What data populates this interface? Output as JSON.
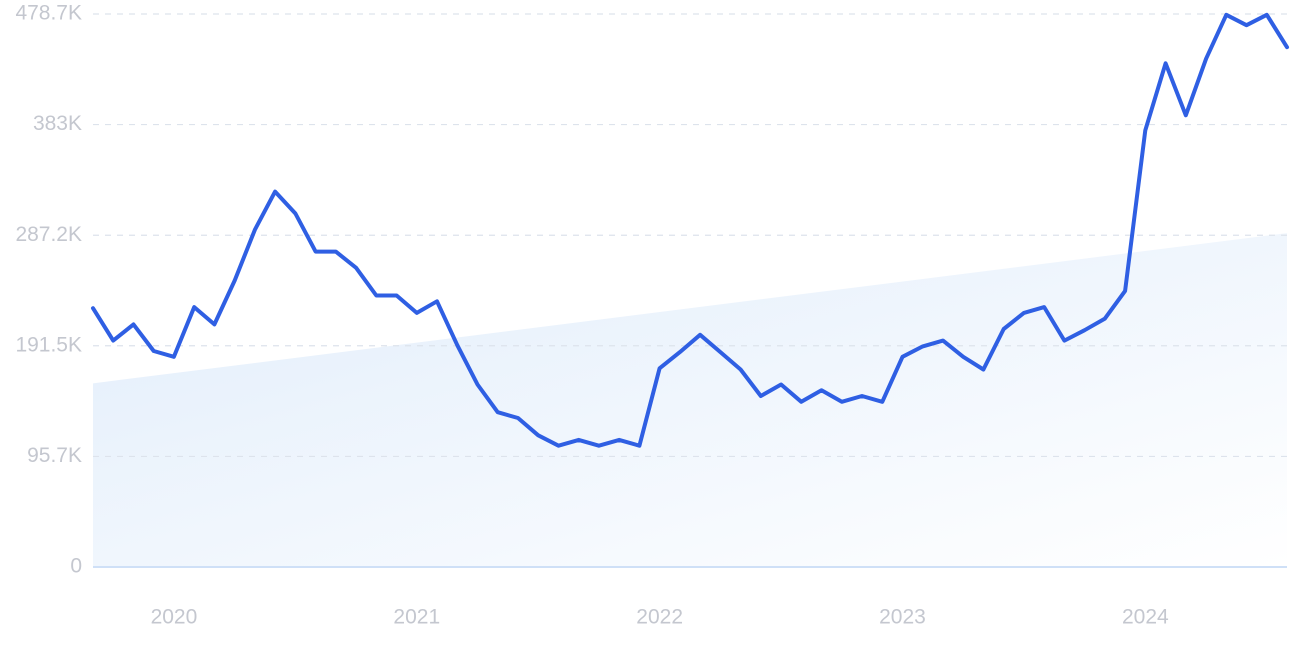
{
  "chart_data": {
    "type": "line",
    "categories": [
      null,
      null,
      null,
      null,
      "2020",
      null,
      null,
      null,
      null,
      null,
      null,
      null,
      null,
      null,
      null,
      null,
      "2021",
      null,
      null,
      null,
      null,
      null,
      null,
      null,
      null,
      null,
      null,
      null,
      "2022",
      null,
      null,
      null,
      null,
      null,
      null,
      null,
      null,
      null,
      null,
      null,
      "2023",
      null,
      null,
      null,
      null,
      null,
      null,
      null,
      null,
      null,
      null,
      null,
      "2024",
      null,
      null,
      null,
      null,
      null,
      null,
      null
    ],
    "values": [
      224000,
      196000,
      210000,
      187000,
      182000,
      225000,
      210000,
      248000,
      292000,
      325000,
      306000,
      273000,
      273000,
      259000,
      235000,
      235000,
      220000,
      230000,
      192000,
      158000,
      134000,
      129000,
      114000,
      105000,
      110000,
      105000,
      110000,
      105000,
      172000,
      186000,
      201000,
      186000,
      171000,
      148000,
      158000,
      143000,
      153000,
      143000,
      148000,
      143000,
      182000,
      191000,
      196000,
      182000,
      171000,
      206000,
      220000,
      225000,
      196000,
      205000,
      215000,
      239000,
      378000,
      436000,
      391000,
      440000,
      478000,
      469000,
      478000,
      450000
    ],
    "color": "#2f5fe3",
    "trend": [
      159000,
      289000
    ],
    "trend_color": "#e1edfb",
    "ylim": [
      0,
      478700
    ],
    "yticks": [
      0,
      {
        "value": 95700,
        "label": "95.7K"
      },
      {
        "value": 191500,
        "label": "191.5K"
      },
      {
        "value": 287200,
        "label": "287.2K"
      },
      {
        "value": 383000,
        "label": "383K"
      },
      {
        "value": 478700,
        "label": "478.7K"
      }
    ],
    "grid": true
  }
}
